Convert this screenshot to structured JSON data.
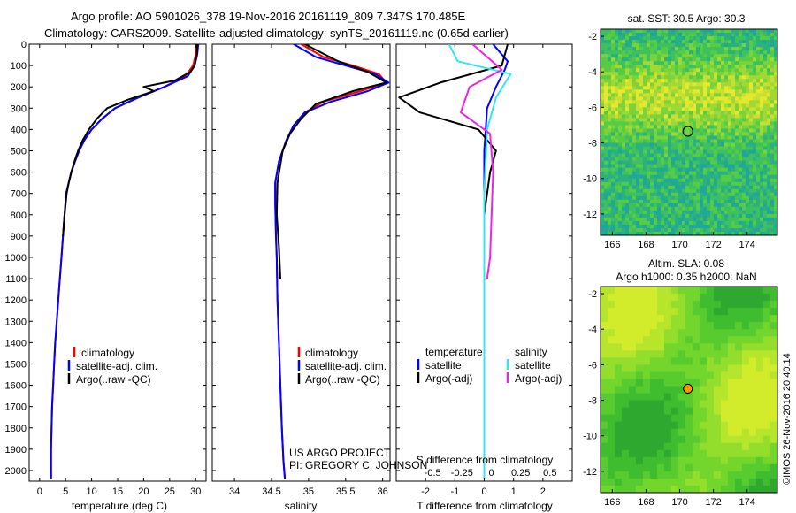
{
  "header": {
    "line1": "Argo profile: AO 5901026_378 19-Nov-2016 20161119_809 7.347S 170.485E",
    "line2": "Climatology: CARS2009. Satellite-adjusted climatology: synTS_20161119.nc (0.65d earlier)"
  },
  "side_label": "©IMOS 26-Nov-2016 20:40:14",
  "project_note": {
    "line1": "US ARGO PROJECT",
    "line2": "PI: GREGORY C. JOHNSON"
  },
  "colors": {
    "climatology": "#ff0000",
    "satellite": "#0000ff",
    "argo": "#000000",
    "sal_satellite": "#33e6f0",
    "sal_argo": "#ee22ee",
    "map_float": "#ff9900"
  },
  "chart_data": [
    {
      "type": "line",
      "id": "temperature-profile",
      "xlabel": "temperature (deg C)",
      "ylabel": "",
      "xlim": [
        -2,
        32
      ],
      "ylim": [
        2050,
        0
      ],
      "x_ticks": [
        0,
        5,
        10,
        15,
        20,
        25,
        30
      ],
      "y_ticks": [
        0,
        100,
        200,
        300,
        400,
        500,
        600,
        700,
        800,
        900,
        1000,
        1100,
        1200,
        1300,
        1400,
        1500,
        1600,
        1700,
        1800,
        1900,
        2000
      ],
      "legend": [
        "climatology",
        "satellite-adj. clim.",
        "Argo(..raw -QC)"
      ],
      "legend_position": "bottom-center",
      "series": [
        {
          "name": "climatology",
          "color": "#ff0000",
          "x": [
            30.2,
            30.0,
            29.5,
            28.0,
            24.0,
            19.0,
            14.5,
            12.0,
            10.0,
            8.6,
            7.6,
            6.8,
            6.1,
            5.6,
            5.1,
            4.8,
            4.5,
            4.2,
            3.9,
            3.6,
            3.3,
            3.0,
            2.8,
            2.6,
            2.4,
            2.3,
            2.2,
            2.2
          ],
          "y": [
            0,
            50,
            100,
            150,
            200,
            250,
            300,
            350,
            400,
            450,
            500,
            550,
            600,
            650,
            700,
            800,
            900,
            1000,
            1100,
            1200,
            1300,
            1400,
            1500,
            1600,
            1700,
            1800,
            1900,
            2040
          ]
        },
        {
          "name": "satellite-adj. clim.",
          "color": "#0000ff",
          "x": [
            30.5,
            30.3,
            29.8,
            28.5,
            24.0,
            19.0,
            14.5,
            12.0,
            10.0,
            8.6,
            7.6,
            6.8,
            6.1,
            5.6,
            5.1,
            4.8,
            4.5,
            4.2,
            3.9,
            3.6,
            3.3,
            3.0,
            2.8,
            2.6,
            2.4,
            2.3,
            2.2,
            2.2
          ],
          "y": [
            0,
            50,
            100,
            150,
            200,
            250,
            300,
            350,
            400,
            450,
            500,
            550,
            600,
            650,
            700,
            800,
            900,
            1000,
            1100,
            1200,
            1300,
            1400,
            1500,
            1600,
            1700,
            1800,
            1900,
            2040
          ]
        },
        {
          "name": "Argo(..raw -QC)",
          "color": "#000000",
          "x": [
            30.3,
            30.2,
            29.8,
            29.0,
            26.0,
            20.0,
            22.0,
            17.0,
            13.0,
            11.0,
            9.5,
            8.3,
            7.4,
            6.7,
            6.1,
            5.6,
            5.2,
            4.8,
            4.5
          ],
          "y": [
            0,
            50,
            100,
            130,
            170,
            200,
            220,
            260,
            300,
            350,
            400,
            450,
            500,
            550,
            600,
            650,
            700,
            800,
            900
          ]
        }
      ]
    },
    {
      "type": "line",
      "id": "salinity-profile",
      "xlabel": "salinity",
      "ylabel": "",
      "xlim": [
        33.7,
        36.1
      ],
      "ylim": [
        2050,
        0
      ],
      "x_ticks": [
        34,
        34.5,
        35,
        35.5,
        36
      ],
      "legend": [
        "climatology",
        "satellite-adj. clim.",
        "Argo(..raw -QC)"
      ],
      "legend_position": "bottom-right",
      "series": [
        {
          "name": "climatology",
          "color": "#ff0000",
          "x": [
            34.9,
            35.2,
            35.6,
            35.95,
            36.05,
            35.7,
            35.2,
            34.95,
            34.8,
            34.7,
            34.6,
            34.55,
            34.55,
            34.56,
            34.57,
            34.58,
            34.6,
            34.62,
            34.64,
            34.66,
            34.68
          ],
          "y": [
            0,
            60,
            100,
            140,
            180,
            220,
            270,
            320,
            380,
            450,
            550,
            650,
            750,
            900,
            1000,
            1200,
            1400,
            1600,
            1800,
            1950,
            2040
          ]
        },
        {
          "name": "satellite-adj. clim.",
          "color": "#0000ff",
          "x": [
            34.8,
            35.1,
            35.5,
            35.9,
            36.08,
            35.8,
            35.3,
            34.95,
            34.8,
            34.7,
            34.6,
            34.55,
            34.55,
            34.56,
            34.57,
            34.58,
            34.6,
            34.62,
            34.64,
            34.66,
            34.68
          ],
          "y": [
            0,
            60,
            100,
            140,
            180,
            220,
            270,
            320,
            380,
            450,
            550,
            650,
            750,
            900,
            1000,
            1200,
            1400,
            1600,
            1800,
            1950,
            2040
          ]
        },
        {
          "name": "Argo(..raw -QC)",
          "color": "#000000",
          "x": [
            34.95,
            35.4,
            35.8,
            36.05,
            35.6,
            35.1,
            34.9,
            34.75,
            34.65,
            34.58,
            34.57,
            34.6,
            34.62
          ],
          "y": [
            0,
            80,
            130,
            180,
            220,
            280,
            350,
            420,
            500,
            650,
            800,
            950,
            1100
          ]
        }
      ]
    },
    {
      "type": "line",
      "id": "difference-profile",
      "xlabel": "T difference from climatology",
      "xlabel_top": "S difference from climatology",
      "ylabel": "",
      "xlim": [
        -3,
        3
      ],
      "ylim": [
        2050,
        0
      ],
      "x_ticks": [
        -2,
        -1,
        0,
        1,
        2
      ],
      "x_ticks_top": [
        "-0.5",
        "-0.25",
        "0",
        "0.25",
        "0.5"
      ],
      "legend_temperature": {
        "heading": "temperature",
        "items": [
          "satellite",
          "Argo(-adj)"
        ]
      },
      "legend_salinity": {
        "heading": "salinity",
        "items": [
          "satellite",
          "Argo(-adj)"
        ]
      },
      "series": [
        {
          "name": "temperature satellite",
          "color": "#0000ff",
          "x": [
            0.3,
            0.8,
            0.7,
            0.4,
            0.1,
            0.0,
            0.0,
            0.0,
            0.0,
            0.0
          ],
          "y": [
            0,
            80,
            120,
            200,
            300,
            500,
            800,
            1200,
            1600,
            2040
          ]
        },
        {
          "name": "temperature Argo(-adj)",
          "color": "#000000",
          "x": [
            0.8,
            0.6,
            -1.5,
            -2.9,
            -2.2,
            -0.2,
            0.4,
            0.2,
            0.0,
            0.0
          ],
          "y": [
            0,
            100,
            180,
            250,
            320,
            400,
            500,
            600,
            800,
            1100
          ]
        },
        {
          "name": "salinity satellite",
          "color": "#33e6f0",
          "x": [
            -1.2,
            -0.9,
            0.9,
            0.4,
            0.1,
            0.0,
            0.0,
            0.0,
            0.0
          ],
          "y": [
            0,
            80,
            140,
            250,
            400,
            700,
            1100,
            1600,
            2040
          ]
        },
        {
          "name": "salinity Argo(-adj)",
          "color": "#ee22ee",
          "x": [
            -0.4,
            0.6,
            -0.5,
            -0.8,
            0.2,
            0.3,
            0.25,
            0.2,
            0.1
          ],
          "y": [
            0,
            120,
            200,
            320,
            420,
            600,
            800,
            1000,
            1100
          ]
        }
      ]
    },
    {
      "type": "heatmap",
      "id": "sst-map",
      "title": "sat. SST: 30.5 Argo: 30.3",
      "xlim": [
        165.3,
        175.8
      ],
      "ylim": [
        -13.2,
        -1.6
      ],
      "x_ticks": [
        166,
        168,
        170,
        172,
        174
      ],
      "y_ticks": [
        -2,
        -4,
        -6,
        -8,
        -10,
        -12
      ],
      "float_position": [
        170.485,
        -7.347
      ]
    },
    {
      "type": "heatmap",
      "id": "sla-map",
      "title": "Altim. SLA: 0.08",
      "subtitle": "Argo h1000: 0.35 h2000: NaN",
      "xlim": [
        165.3,
        175.8
      ],
      "ylim": [
        -13.2,
        -1.6
      ],
      "x_ticks": [
        166,
        168,
        170,
        172,
        174
      ],
      "y_ticks": [
        -2,
        -4,
        -6,
        -8,
        -10,
        -12
      ],
      "float_position": [
        170.485,
        -7.347
      ]
    }
  ]
}
